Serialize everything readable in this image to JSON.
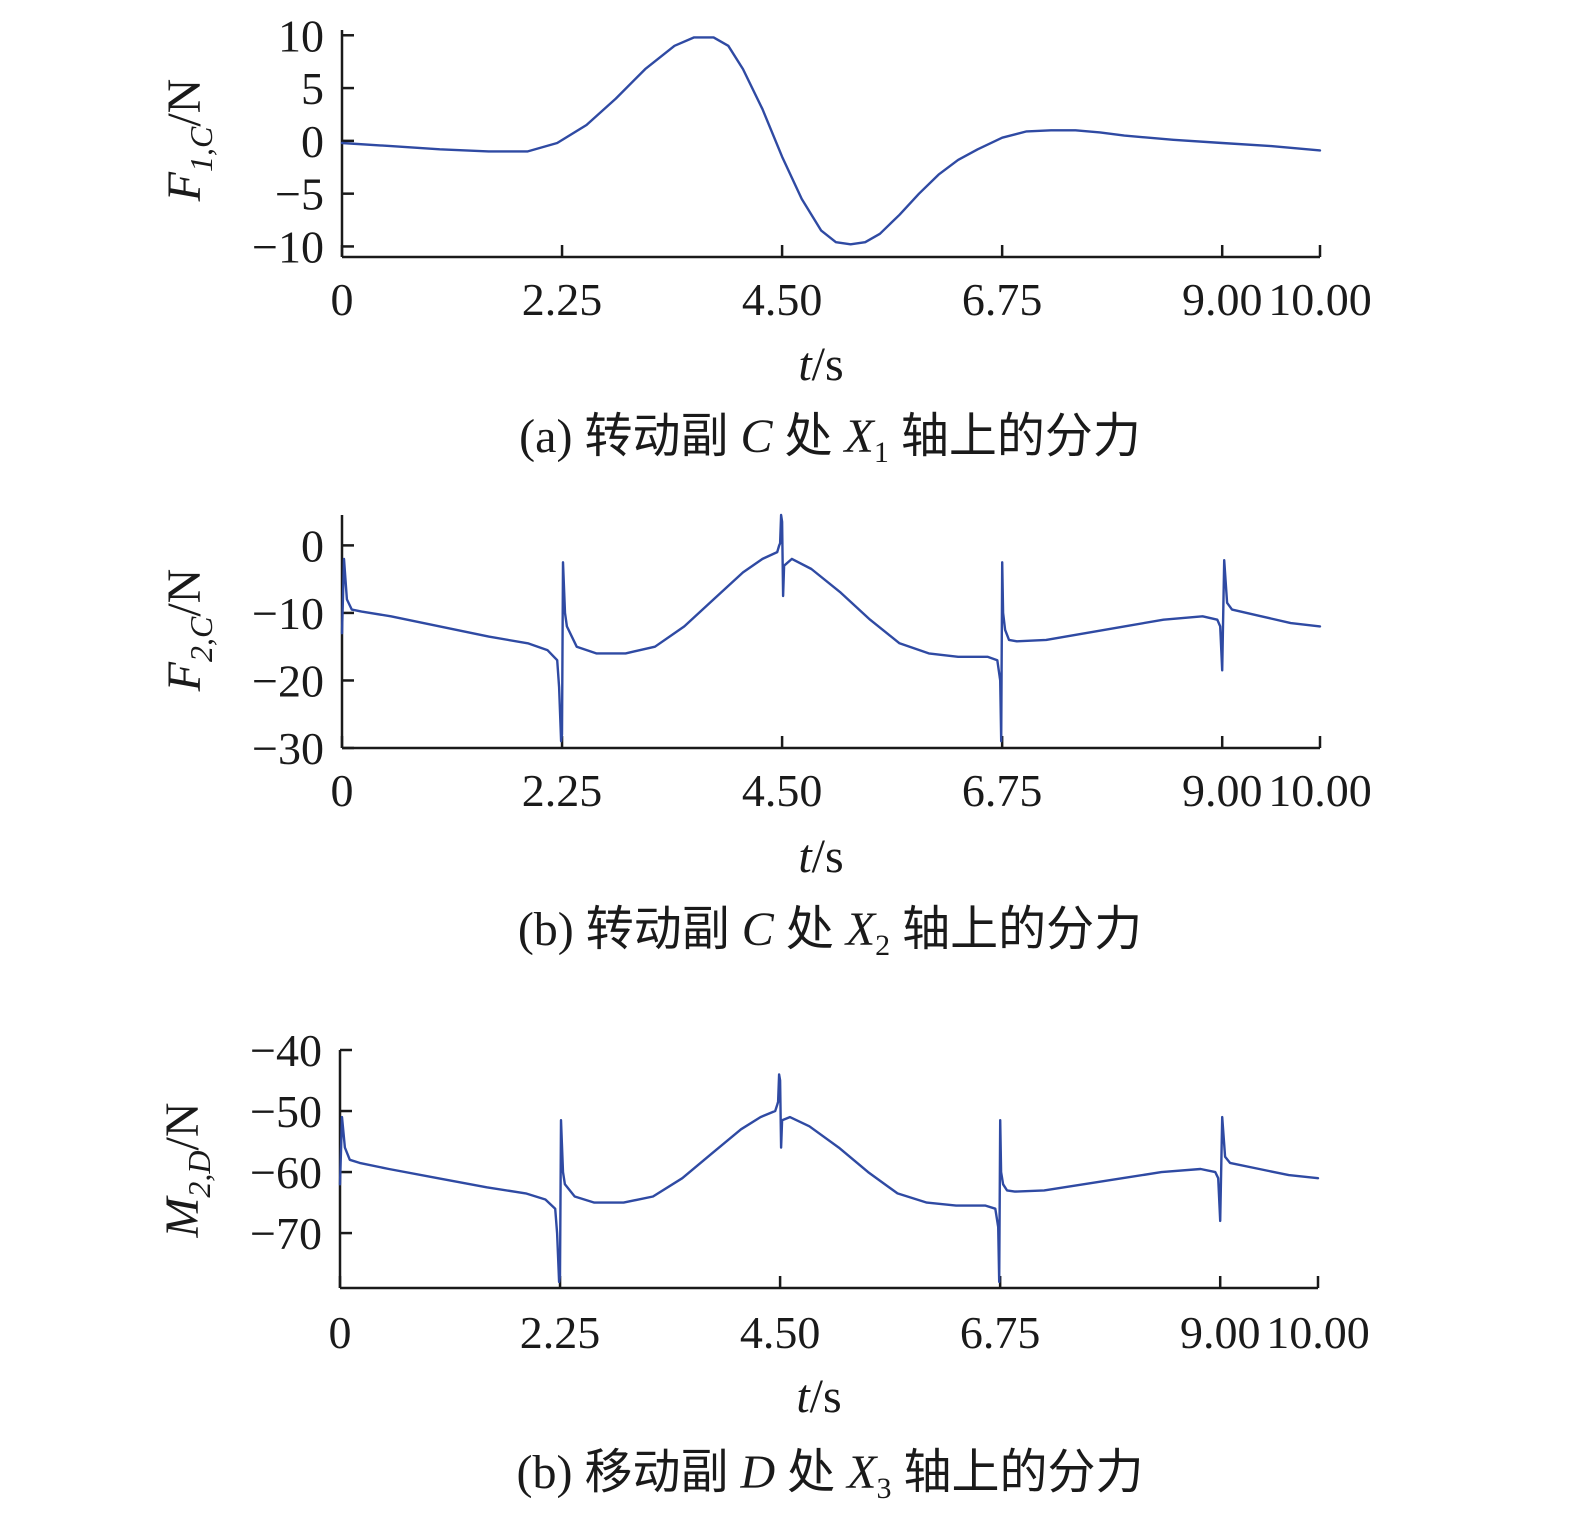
{
  "colors": {
    "series": "#2f4aa3",
    "axis": "#1a1a1a"
  },
  "chart_data": [
    {
      "type": "line",
      "xlabel_var": "t",
      "xlabel_unit": "/s",
      "ylabel_main": "F",
      "ylabel_sub": "1,C",
      "ylabel_unit": "/N",
      "caption_prefix": "(a) 转动副 ",
      "caption_var": "C",
      "caption_mid": " 处 ",
      "caption_var2": "X",
      "caption_sub": "1",
      "caption_suffix": " 轴上的分力",
      "xlim": [
        0,
        10
      ],
      "ylim": [
        -11,
        10.5
      ],
      "xticks": [
        0,
        2.25,
        4.5,
        6.75,
        9,
        10
      ],
      "xtick_labels": [
        "0",
        "2.25",
        "4.50",
        "6.75",
        "9.00",
        "10.00"
      ],
      "yticks": [
        10,
        5,
        0,
        -5,
        -10
      ],
      "ytick_labels": [
        "10",
        "5",
        "0",
        "−5",
        "−10"
      ],
      "series": [
        {
          "x": [
            0,
            0.5,
            1.0,
            1.5,
            1.9,
            2.2,
            2.5,
            2.8,
            3.1,
            3.4,
            3.6,
            3.8,
            3.95,
            4.1,
            4.3,
            4.5,
            4.7,
            4.9,
            5.05,
            5.2,
            5.35,
            5.5,
            5.7,
            5.9,
            6.1,
            6.3,
            6.5,
            6.75,
            7.0,
            7.25,
            7.5,
            7.75,
            8.0,
            8.5,
            9.0,
            9.5,
            10.0
          ],
          "y": [
            -0.2,
            -0.5,
            -0.8,
            -1.0,
            -1.0,
            -0.2,
            1.5,
            4.0,
            6.8,
            9.0,
            9.8,
            9.8,
            9.0,
            6.8,
            3.0,
            -1.5,
            -5.5,
            -8.5,
            -9.6,
            -9.8,
            -9.6,
            -8.8,
            -7.0,
            -5.0,
            -3.2,
            -1.8,
            -0.8,
            0.3,
            0.9,
            1.0,
            1.0,
            0.8,
            0.5,
            0.1,
            -0.2,
            -0.5,
            -0.9
          ]
        }
      ]
    },
    {
      "type": "line",
      "xlabel_var": "t",
      "xlabel_unit": "/s",
      "ylabel_main": "F",
      "ylabel_sub": "2,C",
      "ylabel_unit": "/N",
      "caption_prefix": "(b) 转动副 ",
      "caption_var": "C",
      "caption_mid": " 处 ",
      "caption_var2": "X",
      "caption_sub": "2",
      "caption_suffix": " 轴上的分力",
      "xlim": [
        0,
        10
      ],
      "ylim": [
        -30,
        4.5
      ],
      "xticks": [
        0,
        2.25,
        4.5,
        6.75,
        9,
        10
      ],
      "xtick_labels": [
        "0",
        "2.25",
        "4.50",
        "6.75",
        "9.00",
        "10.00"
      ],
      "yticks": [
        0,
        -10,
        -20,
        -30
      ],
      "ytick_labels": [
        "0",
        "−10",
        "−20",
        "−30"
      ],
      "series": [
        {
          "x": [
            0,
            0.02,
            0.05,
            0.1,
            0.2,
            0.5,
            1.0,
            1.5,
            1.9,
            2.1,
            2.2,
            2.22,
            2.24,
            2.25,
            2.26,
            2.28,
            2.3,
            2.4,
            2.6,
            2.9,
            3.2,
            3.5,
            3.8,
            4.1,
            4.3,
            4.45,
            4.47,
            4.48,
            4.49,
            4.5,
            4.51,
            4.52,
            4.6,
            4.8,
            5.1,
            5.4,
            5.7,
            6.0,
            6.3,
            6.6,
            6.7,
            6.73,
            6.74,
            6.75,
            6.76,
            6.78,
            6.82,
            6.9,
            7.2,
            7.6,
            8.0,
            8.4,
            8.8,
            8.95,
            8.98,
            9.0,
            9.02,
            9.05,
            9.1,
            9.4,
            9.7,
            10.0
          ],
          "y": [
            -13,
            -2,
            -8,
            -9.5,
            -9.8,
            -10.5,
            -12,
            -13.5,
            -14.5,
            -15.5,
            -17,
            -21,
            -29,
            -28,
            -2.5,
            -10,
            -12,
            -15,
            -16,
            -16,
            -15,
            -12,
            -8,
            -4,
            -2,
            -1,
            0,
            0.3,
            4.5,
            3.5,
            -7.5,
            -3,
            -2,
            -3.5,
            -7,
            -11,
            -14.5,
            -16,
            -16.5,
            -16.5,
            -17,
            -20,
            -29,
            -2.5,
            -10,
            -12.5,
            -14,
            -14.2,
            -14,
            -13,
            -12,
            -11,
            -10.5,
            -11,
            -12,
            -18.5,
            -2.2,
            -8.5,
            -9.5,
            -10.5,
            -11.5,
            -12
          ]
        }
      ]
    },
    {
      "type": "line",
      "xlabel_var": "t",
      "xlabel_unit": "/s",
      "ylabel_main": "M",
      "ylabel_sub": "2,D",
      "ylabel_unit": "/N",
      "caption_prefix": "(b) 移动副 ",
      "caption_var": "D",
      "caption_mid": " 处 ",
      "caption_var2": "X",
      "caption_sub": "3",
      "caption_suffix": " 轴上的分力",
      "xlim": [
        0,
        10
      ],
      "ylim": [
        -79,
        -40
      ],
      "xticks": [
        0,
        2.25,
        4.5,
        6.75,
        9,
        10
      ],
      "xtick_labels": [
        "0",
        "2.25",
        "4.50",
        "6.75",
        "9.00",
        "10.00"
      ],
      "yticks": [
        -40,
        -50,
        -60,
        -70
      ],
      "ytick_labels": [
        "−40",
        "−50",
        "−60",
        "−70"
      ],
      "series": [
        {
          "x": [
            0,
            0.02,
            0.05,
            0.1,
            0.2,
            0.5,
            1.0,
            1.5,
            1.9,
            2.1,
            2.2,
            2.22,
            2.24,
            2.25,
            2.26,
            2.28,
            2.3,
            2.4,
            2.6,
            2.9,
            3.2,
            3.5,
            3.8,
            4.1,
            4.3,
            4.45,
            4.47,
            4.48,
            4.49,
            4.5,
            4.51,
            4.52,
            4.6,
            4.8,
            5.1,
            5.4,
            5.7,
            6.0,
            6.3,
            6.6,
            6.7,
            6.73,
            6.74,
            6.75,
            6.76,
            6.78,
            6.82,
            6.9,
            7.2,
            7.6,
            8.0,
            8.4,
            8.8,
            8.95,
            8.98,
            9.0,
            9.02,
            9.05,
            9.1,
            9.4,
            9.7,
            10.0
          ],
          "y": [
            -62,
            -51,
            -56,
            -58,
            -58.5,
            -59.5,
            -61,
            -62.5,
            -63.5,
            -64.5,
            -66,
            -70,
            -78,
            -77,
            -51.5,
            -60,
            -62,
            -64,
            -65,
            -65,
            -64,
            -61,
            -57,
            -53,
            -51,
            -50,
            -49,
            -48.5,
            -44,
            -45,
            -56,
            -51.5,
            -51,
            -52.5,
            -56,
            -60,
            -63.5,
            -65,
            -65.5,
            -65.5,
            -66,
            -69,
            -78,
            -51.5,
            -60,
            -62,
            -63,
            -63.2,
            -63,
            -62,
            -61,
            -60,
            -59.5,
            -60,
            -61,
            -68,
            -51,
            -57.5,
            -58.5,
            -59.5,
            -60.5,
            -61
          ]
        }
      ]
    }
  ]
}
